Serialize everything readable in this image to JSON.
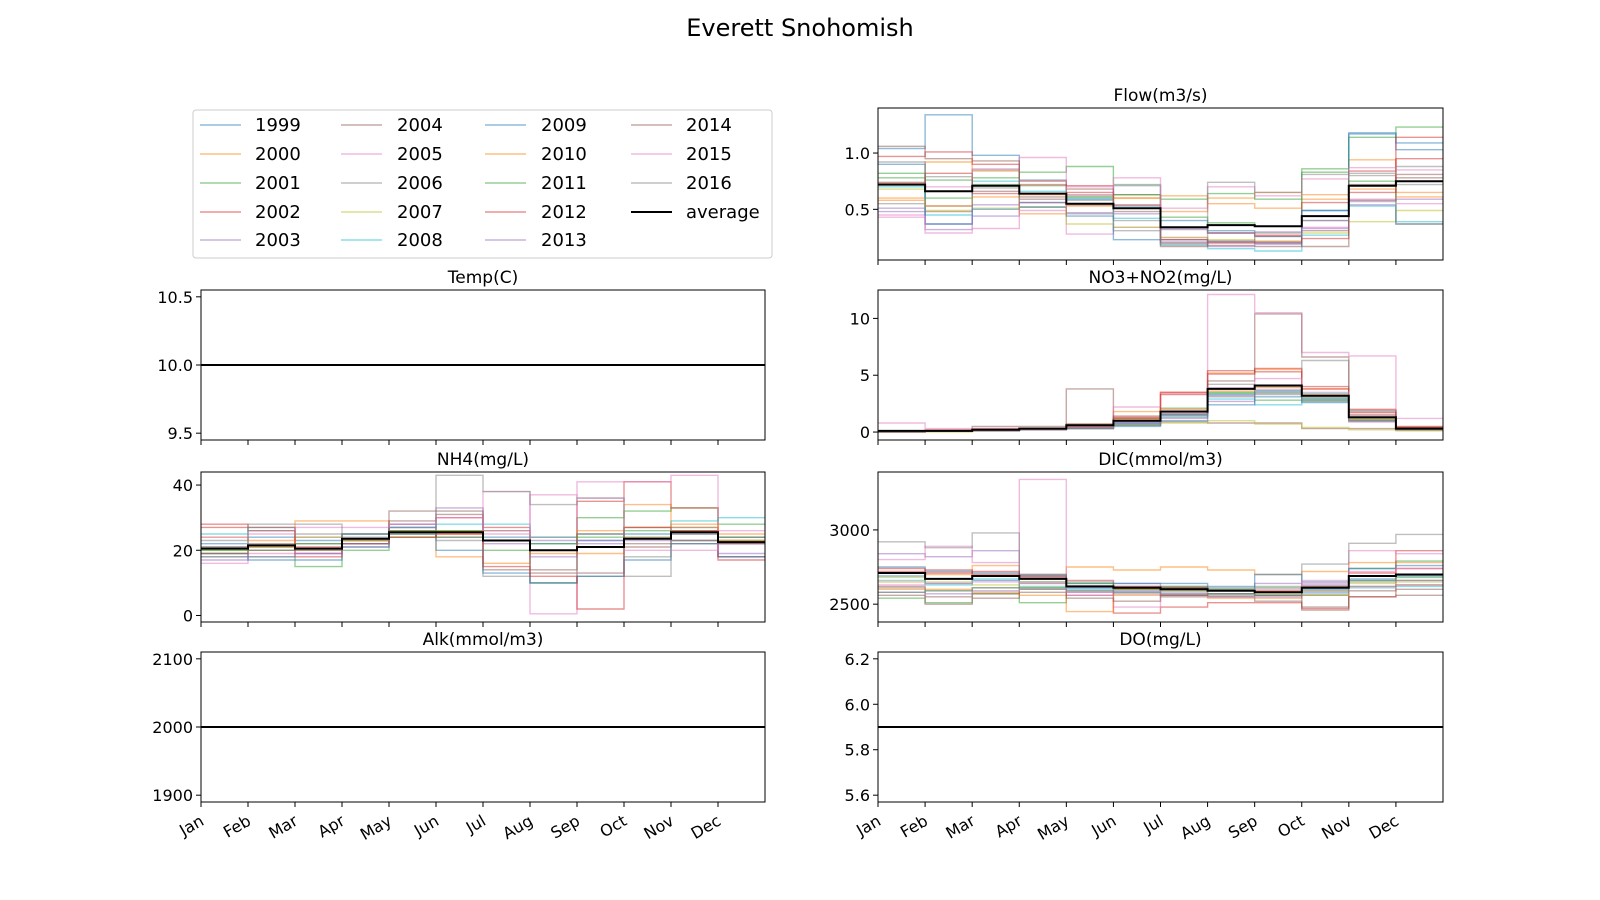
{
  "figure": {
    "title": "Everett Snohomish"
  },
  "months": [
    "Jan",
    "Feb",
    "Mar",
    "Apr",
    "May",
    "Jun",
    "Jul",
    "Aug",
    "Sep",
    "Oct",
    "Nov",
    "Dec"
  ],
  "legend": {
    "entries": [
      "1999",
      "2000",
      "2001",
      "2002",
      "2003",
      "2004",
      "2005",
      "2006",
      "2007",
      "2008",
      "2009",
      "2010",
      "2011",
      "2012",
      "2013",
      "2014",
      "2015",
      "2016",
      "average"
    ],
    "colors": [
      "#1f77b4",
      "#ff7f0e",
      "#2ca02c",
      "#d62728",
      "#9467bd",
      "#8c564b",
      "#e377c2",
      "#7f7f7f",
      "#bcbd22",
      "#17becf",
      "#1f77b4",
      "#ff7f0e",
      "#2ca02c",
      "#d62728",
      "#9467bd",
      "#8c564b",
      "#e377c2",
      "#7f7f7f",
      "#000000"
    ]
  },
  "chart_data": [
    {
      "id": "temp",
      "type": "line",
      "title": "Temp(C)",
      "ylim": [
        9.45,
        10.55
      ],
      "yticks": [
        9.5,
        10.0,
        10.5
      ],
      "ytick_labels": [
        "9.5",
        "10.0",
        "10.5"
      ],
      "constant": 10.0
    },
    {
      "id": "flow",
      "type": "line",
      "title": "Flow(m3/s)",
      "ylim": [
        0.05,
        1.4
      ],
      "yticks": [
        0.5,
        1.0
      ],
      "ytick_labels": [
        "0.5",
        "1.0"
      ],
      "average": [
        0.72,
        0.66,
        0.71,
        0.64,
        0.55,
        0.51,
        0.34,
        0.36,
        0.35,
        0.44,
        0.71,
        0.75
      ],
      "series": [
        [
          1.04,
          1.34,
          0.98,
          0.76,
          0.59,
          0.53,
          0.4,
          0.31,
          0.26,
          0.49,
          1.17,
          1.03
        ],
        [
          0.6,
          0.92,
          0.84,
          0.63,
          0.53,
          0.6,
          0.62,
          0.55,
          0.51,
          0.59,
          0.94,
          0.61
        ],
        [
          0.78,
          0.6,
          0.78,
          0.83,
          0.88,
          0.72,
          0.43,
          0.38,
          0.35,
          0.86,
          1.14,
          1.23
        ],
        [
          0.97,
          1.01,
          0.9,
          0.75,
          0.65,
          0.51,
          0.34,
          0.29,
          0.27,
          0.56,
          0.84,
          0.95
        ],
        [
          0.51,
          0.37,
          0.44,
          0.56,
          0.47,
          0.46,
          0.32,
          0.29,
          0.3,
          0.4,
          0.57,
          0.59
        ],
        [
          0.74,
          0.48,
          0.66,
          0.59,
          0.68,
          0.63,
          0.2,
          0.18,
          0.17,
          0.31,
          0.72,
          0.81
        ],
        [
          0.45,
          0.7,
          0.86,
          0.96,
          0.28,
          0.34,
          0.25,
          0.21,
          0.2,
          0.34,
          0.59,
          0.55
        ],
        [
          0.55,
          0.53,
          0.69,
          0.52,
          0.46,
          0.4,
          0.33,
          0.29,
          0.29,
          0.4,
          0.8,
          0.72
        ],
        [
          0.68,
          0.49,
          0.51,
          0.52,
          0.37,
          0.34,
          0.25,
          0.23,
          0.22,
          0.29,
          0.39,
          0.49
        ],
        [
          0.7,
          0.45,
          0.75,
          0.66,
          0.6,
          0.42,
          0.18,
          0.15,
          0.13,
          0.27,
          0.53,
          0.39
        ],
        [
          0.9,
          0.37,
          0.5,
          0.52,
          0.44,
          0.23,
          0.23,
          0.21,
          0.2,
          0.49,
          1.18,
          1.09
        ],
        [
          0.58,
          0.53,
          0.61,
          0.46,
          0.62,
          0.6,
          0.48,
          0.6,
          0.65,
          0.63,
          0.68,
          0.65
        ],
        [
          0.82,
          0.76,
          0.72,
          0.71,
          0.61,
          0.63,
          0.59,
          0.64,
          0.59,
          0.83,
          0.75,
          0.37
        ],
        [
          0.73,
          0.82,
          0.64,
          0.72,
          0.71,
          0.54,
          0.23,
          0.2,
          0.21,
          0.24,
          0.65,
          1.14
        ],
        [
          0.48,
          0.32,
          0.54,
          0.56,
          0.63,
          0.71,
          0.21,
          0.17,
          0.19,
          0.33,
          0.54,
          0.37
        ],
        [
          1.06,
          0.95,
          0.93,
          0.61,
          0.54,
          0.48,
          0.17,
          0.22,
          0.26,
          0.17,
          0.58,
          0.78
        ],
        [
          0.43,
          0.29,
          0.33,
          0.49,
          0.7,
          0.78,
          0.51,
          0.7,
          0.62,
          0.77,
          0.87,
          0.85
        ],
        [
          0.92,
          0.79,
          0.85,
          0.56,
          0.58,
          0.31,
          0.19,
          0.74,
          0.65,
          0.81,
          0.82,
          0.88
        ]
      ]
    },
    {
      "id": "no3",
      "type": "line",
      "title": "NO3+NO2(mg/L)",
      "ylim": [
        -0.7,
        12.5
      ],
      "yticks": [
        0,
        5,
        10
      ],
      "ytick_labels": [
        "0",
        "5",
        "10"
      ],
      "average": [
        0.1,
        0.1,
        0.2,
        0.3,
        0.6,
        1.0,
        1.8,
        3.8,
        4.1,
        3.2,
        1.3,
        0.3
      ],
      "series": [
        [
          0.1,
          0.1,
          0.2,
          0.2,
          0.4,
          0.8,
          1.5,
          3.3,
          3.6,
          2.9,
          1.2,
          0.3
        ],
        [
          0.0,
          0.1,
          0.2,
          0.3,
          0.7,
          1.8,
          3.5,
          5.2,
          5.5,
          3.8,
          1.5,
          0.4
        ],
        [
          0.1,
          0.1,
          0.2,
          0.2,
          0.6,
          1.2,
          2.1,
          3.5,
          2.8,
          2.7,
          1.1,
          0.2
        ],
        [
          0.1,
          0.2,
          0.3,
          0.3,
          0.5,
          1.2,
          3.5,
          5.1,
          5.6,
          4.0,
          2.0,
          0.5
        ],
        [
          0.0,
          0.1,
          0.2,
          0.3,
          0.3,
          0.9,
          1.6,
          3.2,
          3.4,
          3.1,
          1.5,
          0.3
        ],
        [
          0.1,
          0.1,
          0.5,
          0.5,
          3.8,
          0.6,
          0.9,
          0.8,
          0.8,
          0.3,
          0.3,
          0.2
        ],
        [
          0.8,
          0.3,
          0.3,
          0.3,
          0.5,
          2.2,
          3.4,
          12.1,
          10.5,
          7.0,
          6.7,
          1.2
        ],
        [
          0.1,
          0.1,
          0.2,
          0.3,
          0.4,
          0.7,
          1.3,
          4.2,
          4.0,
          6.3,
          1.8,
          0.4
        ],
        [
          0.0,
          0.0,
          0.1,
          0.2,
          0.3,
          0.6,
          0.8,
          1.0,
          0.7,
          0.4,
          0.2,
          0.1
        ],
        [
          0.1,
          0.1,
          0.2,
          0.2,
          0.4,
          0.7,
          1.4,
          2.9,
          2.4,
          3.4,
          1.0,
          0.3
        ],
        [
          0.1,
          0.1,
          0.2,
          0.2,
          0.3,
          0.5,
          1.0,
          2.4,
          3.1,
          2.6,
          1.3,
          0.2
        ],
        [
          0.0,
          0.1,
          0.2,
          0.2,
          0.5,
          1.1,
          2.0,
          3.6,
          3.9,
          3.3,
          1.1,
          0.2
        ],
        [
          0.1,
          0.1,
          0.2,
          0.2,
          0.4,
          0.9,
          1.8,
          3.4,
          3.5,
          3.0,
          1.0,
          0.3
        ],
        [
          0.1,
          0.1,
          0.2,
          0.3,
          0.6,
          1.3,
          3.3,
          5.4,
          5.3,
          3.8,
          1.7,
          0.4
        ],
        [
          0.0,
          0.1,
          0.1,
          0.2,
          0.4,
          0.8,
          1.2,
          2.7,
          3.7,
          2.8,
          0.9,
          0.2
        ],
        [
          0.1,
          0.1,
          0.2,
          0.2,
          0.7,
          1.4,
          1.6,
          4.5,
          10.4,
          6.6,
          1.9,
          0.3
        ],
        [
          0.1,
          0.1,
          0.2,
          0.2,
          0.4,
          0.9,
          1.9,
          3.9,
          4.7,
          3.5,
          0.9,
          0.3
        ],
        [
          0.0,
          0.1,
          0.1,
          0.2,
          0.3,
          0.6,
          1.5,
          3.1,
          3.3,
          2.8,
          1.0,
          0.2
        ]
      ]
    },
    {
      "id": "nh4",
      "type": "line",
      "title": "NH4(mg/L)",
      "ylim": [
        -2,
        44
      ],
      "yticks": [
        0,
        20,
        40
      ],
      "ytick_labels": [
        "0",
        "20",
        "40"
      ],
      "average": [
        20.5,
        21.5,
        20.5,
        23.5,
        25.5,
        25.5,
        23.0,
        20.0,
        21.0,
        23.5,
        25.5,
        22.5
      ],
      "series": [
        [
          22,
          24,
          23,
          25,
          27,
          26,
          24,
          22,
          23,
          25,
          27,
          24
        ],
        [
          19,
          21,
          29,
          29,
          24,
          18,
          16,
          20,
          19,
          34,
          27,
          23
        ],
        [
          18,
          18,
          15,
          20,
          24,
          26,
          20,
          10,
          30,
          32,
          33,
          28
        ],
        [
          28,
          26,
          21,
          23,
          27,
          30,
          27,
          24,
          35,
          41,
          33,
          18
        ],
        [
          18,
          21,
          19,
          22,
          26,
          24,
          22,
          18,
          23,
          24,
          26,
          22
        ],
        [
          21,
          22,
          22,
          23,
          29,
          31,
          14,
          13,
          13,
          21,
          22,
          23
        ],
        [
          16,
          19,
          19,
          21,
          27,
          24,
          38,
          0.5,
          41,
          41,
          43,
          22
        ],
        [
          21,
          26,
          25,
          23,
          28,
          23,
          12,
          10,
          12,
          18,
          23,
          18
        ],
        [
          20,
          21,
          20,
          23,
          25,
          26,
          23,
          20,
          21,
          24,
          26,
          23
        ],
        [
          25,
          27,
          24,
          25,
          27,
          28,
          28,
          24,
          25,
          27,
          29,
          30
        ],
        [
          19,
          17,
          17,
          21,
          25,
          20,
          13,
          10,
          12,
          17,
          22,
          18
        ],
        [
          24,
          23,
          24,
          22,
          26,
          25,
          26,
          19,
          26,
          27,
          28,
          25
        ],
        [
          20,
          20,
          22,
          22,
          26,
          24,
          23,
          22,
          24,
          26,
          25,
          24
        ],
        [
          27,
          27,
          18,
          22,
          24,
          25,
          15,
          12,
          2,
          27,
          26,
          17
        ],
        [
          17,
          18,
          19,
          22,
          28,
          33,
          26,
          23,
          22,
          23,
          25,
          19
        ],
        [
          19,
          20,
          20,
          25,
          32,
          32,
          23,
          14,
          25,
          22,
          23,
          22
        ],
        [
          24,
          25,
          27,
          27,
          28,
          30,
          25,
          37,
          36,
          20,
          20,
          26
        ],
        [
          23,
          28,
          28,
          24,
          25,
          43,
          38,
          34,
          36,
          12,
          23,
          24
        ]
      ]
    },
    {
      "id": "dic",
      "type": "line",
      "title": "DIC(mmol/m3)",
      "ylim": [
        2380,
        3390
      ],
      "yticks": [
        2500,
        3000
      ],
      "ytick_labels": [
        "2500",
        "3000"
      ],
      "average": [
        2710,
        2670,
        2690,
        2670,
        2620,
        2610,
        2600,
        2590,
        2580,
        2610,
        2690,
        2700
      ],
      "series": [
        [
          2690,
          2640,
          2660,
          2650,
          2610,
          2600,
          2590,
          2570,
          2560,
          2600,
          2670,
          2690
        ],
        [
          2650,
          2700,
          2760,
          2610,
          2750,
          2730,
          2750,
          2730,
          2700,
          2720,
          2780,
          2780
        ],
        [
          2540,
          2510,
          2570,
          2510,
          2590,
          2580,
          2620,
          2590,
          2580,
          2560,
          2740,
          2790
        ],
        [
          2720,
          2730,
          2700,
          2690,
          2660,
          2440,
          2480,
          2510,
          2510,
          2470,
          2550,
          2860
        ],
        [
          2840,
          2820,
          2860,
          2640,
          2610,
          2640,
          2610,
          2600,
          2640,
          2630,
          2660,
          2660
        ],
        [
          2620,
          2500,
          2540,
          2700,
          2560,
          2600,
          2550,
          2550,
          2520,
          2480,
          2590,
          2600
        ],
        [
          2800,
          2890,
          2780,
          3340,
          2560,
          2480,
          2560,
          2570,
          2580,
          2640,
          2860,
          2840
        ],
        [
          2920,
          2880,
          2980,
          2700,
          2650,
          2620,
          2620,
          2610,
          2620,
          2770,
          2910,
          2970
        ],
        [
          2680,
          2650,
          2630,
          2650,
          2620,
          2600,
          2590,
          2570,
          2570,
          2590,
          2640,
          2650
        ],
        [
          2660,
          2630,
          2670,
          2620,
          2600,
          2590,
          2570,
          2570,
          2560,
          2570,
          2610,
          2620
        ],
        [
          2750,
          2720,
          2710,
          2690,
          2640,
          2640,
          2640,
          2620,
          2700,
          2650,
          2740,
          2760
        ],
        [
          2600,
          2600,
          2580,
          2560,
          2450,
          2560,
          2560,
          2540,
          2540,
          2560,
          2620,
          2630
        ],
        [
          2580,
          2590,
          2610,
          2610,
          2640,
          2610,
          2610,
          2600,
          2610,
          2620,
          2660,
          2680
        ],
        [
          2740,
          2710,
          2720,
          2680,
          2620,
          2620,
          2610,
          2590,
          2590,
          2620,
          2710,
          2740
        ],
        [
          2580,
          2570,
          2590,
          2600,
          2580,
          2570,
          2560,
          2550,
          2550,
          2580,
          2620,
          2630
        ],
        [
          2560,
          2550,
          2570,
          2580,
          2540,
          2520,
          2560,
          2570,
          2560,
          2460,
          2550,
          2560
        ],
        [
          2630,
          2640,
          2650,
          2640,
          2580,
          2590,
          2580,
          2590,
          2600,
          2660,
          2720,
          2740
        ],
        [
          2610,
          2590,
          2610,
          2600,
          2590,
          2580,
          2570,
          2560,
          2560,
          2590,
          2650,
          2660
        ]
      ]
    },
    {
      "id": "alk",
      "type": "line",
      "title": "Alk(mmol/m3)",
      "ylim": [
        1890,
        2110
      ],
      "yticks": [
        1900,
        2000,
        2100
      ],
      "ytick_labels": [
        "1900",
        "2000",
        "2100"
      ],
      "constant": 2000
    },
    {
      "id": "do",
      "type": "line",
      "title": "DO(mg/L)",
      "ylim": [
        5.57,
        6.23
      ],
      "yticks": [
        5.6,
        5.8,
        6.0,
        6.2
      ],
      "ytick_labels": [
        "5.6",
        "5.8",
        "6.0",
        "6.2"
      ],
      "constant": 5.9
    }
  ]
}
